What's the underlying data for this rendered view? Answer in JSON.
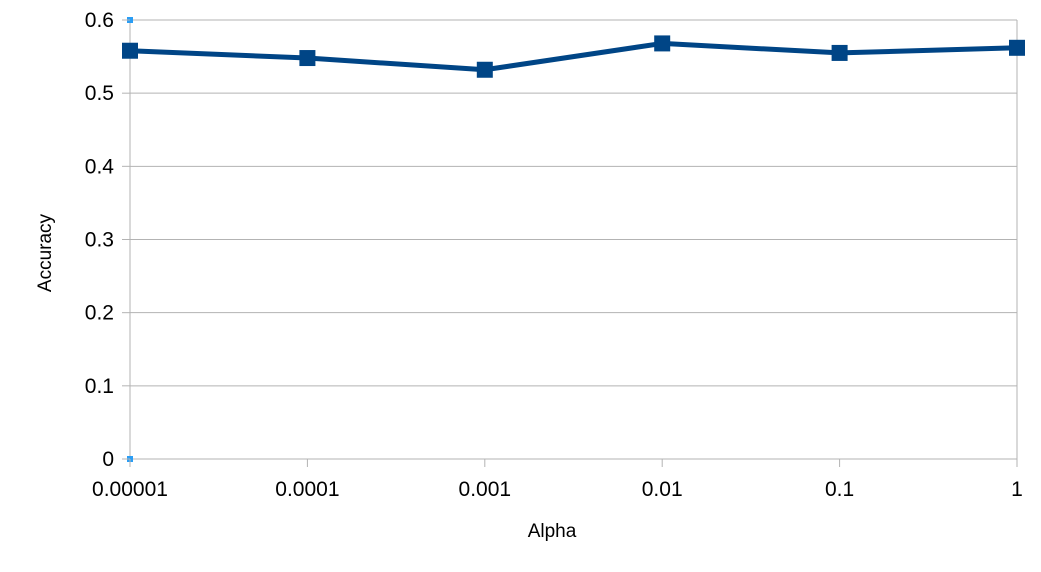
{
  "chart_data": {
    "type": "line",
    "title": "",
    "xlabel": "Alpha",
    "ylabel": "Accuracy",
    "categories": [
      "0.00001",
      "0.0001",
      "0.001",
      "0.01",
      "0.1",
      "1"
    ],
    "ylim": [
      0,
      0.6
    ],
    "yticks": [
      "0",
      "0.1",
      "0.2",
      "0.3",
      "0.4",
      "0.5",
      "0.6"
    ],
    "grid": true,
    "legend": "none",
    "series": [
      {
        "values": [
          0.558,
          0.548,
          0.532,
          0.568,
          0.555,
          0.562
        ],
        "color": "#004586",
        "marker": "square"
      }
    ]
  }
}
